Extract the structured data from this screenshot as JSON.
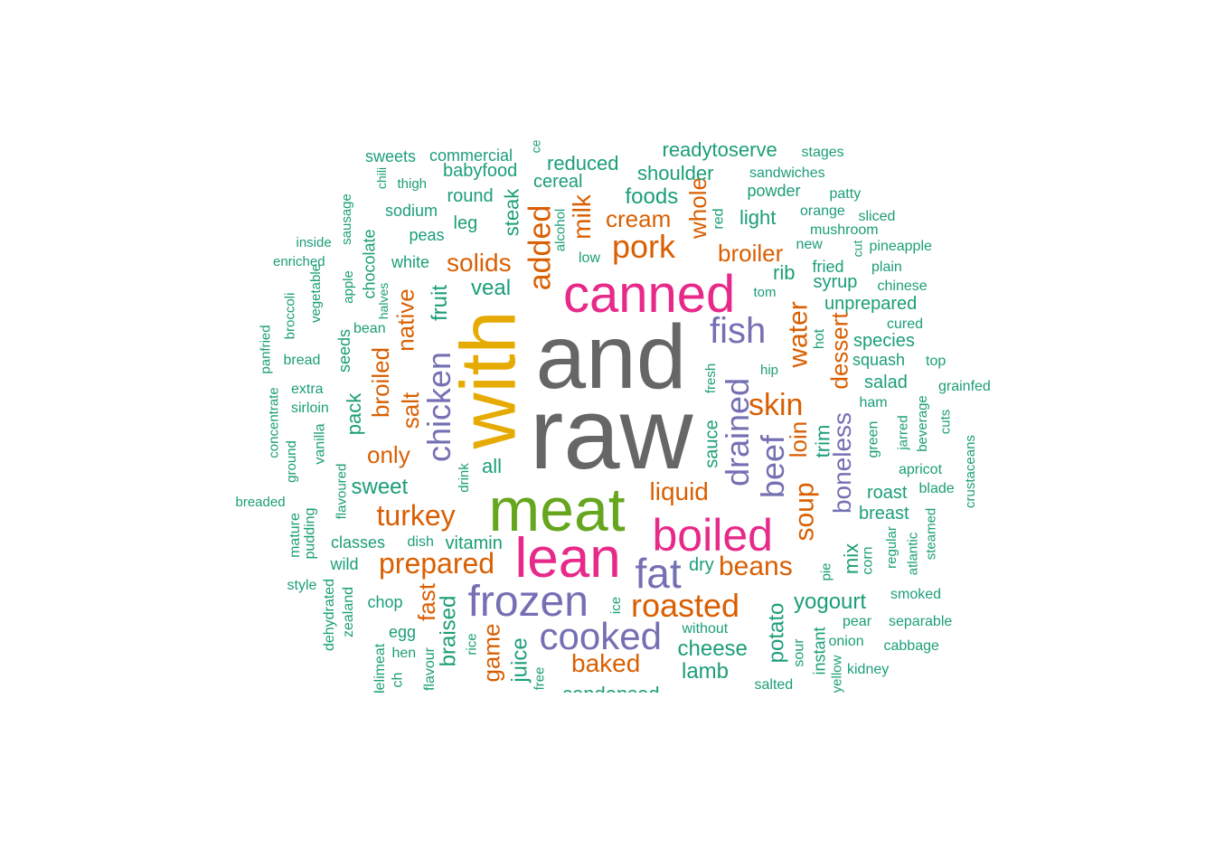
{
  "palette": {
    "teal": "#1b9e77",
    "orange": "#d95f02",
    "purple": "#7570b3",
    "magenta": "#e7298a",
    "green": "#66a61e",
    "gold": "#e6ab02",
    "gray": "#666666"
  },
  "words": [
    {
      "t": "raw",
      "c": "gray"
    },
    {
      "t": "and",
      "c": "gray"
    },
    {
      "t": "with",
      "c": "gold"
    },
    {
      "t": "meat",
      "c": "green"
    },
    {
      "t": "lean",
      "c": "magenta"
    },
    {
      "t": "canned",
      "c": "magenta"
    },
    {
      "t": "boiled",
      "c": "magenta"
    },
    {
      "t": "frozen",
      "c": "purple"
    },
    {
      "t": "fat",
      "c": "purple"
    },
    {
      "t": "cooked",
      "c": "purple"
    },
    {
      "t": "roasted",
      "c": "orange"
    },
    {
      "t": "drained",
      "c": "purple"
    },
    {
      "t": "fish",
      "c": "purple"
    },
    {
      "t": "chicken",
      "c": "purple"
    },
    {
      "t": "pork",
      "c": "orange"
    },
    {
      "t": "beef",
      "c": "purple"
    },
    {
      "t": "added",
      "c": "orange"
    },
    {
      "t": "skin",
      "c": "orange"
    },
    {
      "t": "turkey",
      "c": "orange"
    },
    {
      "t": "prepared",
      "c": "orange"
    },
    {
      "t": "beans",
      "c": "orange"
    },
    {
      "t": "soup",
      "c": "orange"
    },
    {
      "t": "water",
      "c": "orange"
    },
    {
      "t": "boneless",
      "c": "purple"
    },
    {
      "t": "dessert",
      "c": "orange"
    },
    {
      "t": "liquid",
      "c": "orange"
    },
    {
      "t": "baked",
      "c": "orange"
    },
    {
      "t": "milk",
      "c": "orange"
    },
    {
      "t": "broiler",
      "c": "orange"
    },
    {
      "t": "solids",
      "c": "orange"
    },
    {
      "t": "whole",
      "c": "orange"
    },
    {
      "t": "cream",
      "c": "orange"
    },
    {
      "t": "native",
      "c": "orange"
    },
    {
      "t": "salt",
      "c": "orange"
    },
    {
      "t": "broiled",
      "c": "orange"
    },
    {
      "t": "loin",
      "c": "orange"
    },
    {
      "t": "game",
      "c": "orange"
    },
    {
      "t": "fast",
      "c": "orange"
    },
    {
      "t": "only",
      "c": "orange"
    },
    {
      "t": "cheese",
      "c": "teal"
    },
    {
      "t": "potato",
      "c": "teal"
    },
    {
      "t": "fruit",
      "c": "teal"
    },
    {
      "t": "veal",
      "c": "teal"
    },
    {
      "t": "foods",
      "c": "teal"
    },
    {
      "t": "braised",
      "c": "teal"
    },
    {
      "t": "yogourt",
      "c": "teal"
    },
    {
      "t": "lamb",
      "c": "teal"
    },
    {
      "t": "juice",
      "c": "teal"
    },
    {
      "t": "sweet",
      "c": "teal"
    },
    {
      "t": "steak",
      "c": "teal"
    },
    {
      "t": "all",
      "c": "teal"
    },
    {
      "t": "pack",
      "c": "teal"
    },
    {
      "t": "shoulder",
      "c": "teal"
    },
    {
      "t": "readytoserve",
      "c": "teal"
    },
    {
      "t": "reduced",
      "c": "teal"
    },
    {
      "t": "babyfood",
      "c": "teal"
    },
    {
      "t": "light",
      "c": "teal"
    },
    {
      "t": "trim",
      "c": "teal"
    },
    {
      "t": "rib",
      "c": "teal"
    },
    {
      "t": "sauce",
      "c": "teal"
    },
    {
      "t": "mix",
      "c": "teal"
    },
    {
      "t": "salad",
      "c": "teal"
    },
    {
      "t": "roast",
      "c": "teal"
    },
    {
      "t": "breast",
      "c": "teal"
    },
    {
      "t": "dry",
      "c": "teal"
    },
    {
      "t": "vitamin",
      "c": "teal"
    },
    {
      "t": "leg",
      "c": "teal"
    },
    {
      "t": "syrup",
      "c": "teal"
    },
    {
      "t": "unprepared",
      "c": "teal"
    },
    {
      "t": "species",
      "c": "teal"
    },
    {
      "t": "cereal",
      "c": "teal"
    },
    {
      "t": "round",
      "c": "teal"
    },
    {
      "t": "chop",
      "c": "teal"
    },
    {
      "t": "chocolate",
      "c": "teal"
    },
    {
      "t": "white",
      "c": "teal"
    },
    {
      "t": "peas",
      "c": "teal"
    },
    {
      "t": "sodium",
      "c": "teal"
    },
    {
      "t": "seeds",
      "c": "teal"
    },
    {
      "t": "classes",
      "c": "teal"
    },
    {
      "t": "squash",
      "c": "teal"
    },
    {
      "t": "fried",
      "c": "teal"
    },
    {
      "t": "instant",
      "c": "teal"
    },
    {
      "t": "condensed",
      "c": "teal"
    },
    {
      "t": "sweets",
      "c": "teal"
    },
    {
      "t": "commercial",
      "c": "teal"
    },
    {
      "t": "stages",
      "c": "teal"
    },
    {
      "t": "sandwiches",
      "c": "teal"
    },
    {
      "t": "powder",
      "c": "teal"
    },
    {
      "t": "patty",
      "c": "teal"
    },
    {
      "t": "orange",
      "c": "teal"
    },
    {
      "t": "sliced",
      "c": "teal"
    },
    {
      "t": "mushroom",
      "c": "teal"
    },
    {
      "t": "new",
      "c": "teal"
    },
    {
      "t": "pineapple",
      "c": "teal"
    },
    {
      "t": "plain",
      "c": "teal"
    },
    {
      "t": "chinese",
      "c": "teal"
    },
    {
      "t": "cured",
      "c": "teal"
    },
    {
      "t": "top",
      "c": "teal"
    },
    {
      "t": "grainfed",
      "c": "teal"
    },
    {
      "t": "ham",
      "c": "teal"
    },
    {
      "t": "apricot",
      "c": "teal"
    },
    {
      "t": "blade",
      "c": "teal"
    },
    {
      "t": "smoked",
      "c": "teal"
    },
    {
      "t": "separable",
      "c": "teal"
    },
    {
      "t": "cabbage",
      "c": "teal"
    },
    {
      "t": "kidney",
      "c": "teal"
    },
    {
      "t": "onion",
      "c": "teal"
    },
    {
      "t": "pear",
      "c": "teal"
    },
    {
      "t": "salted",
      "c": "teal"
    },
    {
      "t": "without",
      "c": "teal"
    },
    {
      "t": "hen",
      "c": "teal"
    },
    {
      "t": "egg",
      "c": "teal"
    },
    {
      "t": "dish",
      "c": "teal"
    },
    {
      "t": "wild",
      "c": "teal"
    },
    {
      "t": "style",
      "c": "teal"
    },
    {
      "t": "bread",
      "c": "teal"
    },
    {
      "t": "extra",
      "c": "teal"
    },
    {
      "t": "sirloin",
      "c": "teal"
    },
    {
      "t": "bean",
      "c": "teal"
    },
    {
      "t": "inside",
      "c": "teal"
    },
    {
      "t": "enriched",
      "c": "teal"
    },
    {
      "t": "breaded",
      "c": "teal"
    },
    {
      "t": "thigh",
      "c": "teal"
    },
    {
      "t": "low",
      "c": "teal"
    },
    {
      "t": "tom",
      "c": "teal"
    },
    {
      "t": "hip",
      "c": "teal"
    },
    {
      "t": "green",
      "c": "teal"
    },
    {
      "t": "jarred",
      "c": "teal"
    },
    {
      "t": "beverage",
      "c": "teal"
    },
    {
      "t": "cuts",
      "c": "teal"
    },
    {
      "t": "crustaceans",
      "c": "teal"
    },
    {
      "t": "regular",
      "c": "teal"
    },
    {
      "t": "atlantic",
      "c": "teal"
    },
    {
      "t": "steamed",
      "c": "teal"
    },
    {
      "t": "corn",
      "c": "teal"
    },
    {
      "t": "pie",
      "c": "teal"
    },
    {
      "t": "sour",
      "c": "teal"
    },
    {
      "t": "yellow",
      "c": "teal"
    },
    {
      "t": "hot",
      "c": "teal"
    },
    {
      "t": "fresh",
      "c": "teal"
    },
    {
      "t": "red",
      "c": "teal"
    },
    {
      "t": "alcohol",
      "c": "teal"
    },
    {
      "t": "rice",
      "c": "teal"
    },
    {
      "t": "ice",
      "c": "teal"
    },
    {
      "t": "free",
      "c": "teal"
    },
    {
      "t": "flavour",
      "c": "teal"
    },
    {
      "t": "delimeat",
      "c": "teal"
    },
    {
      "t": "ch",
      "c": "teal"
    },
    {
      "t": "zealand",
      "c": "teal"
    },
    {
      "t": "dehydrated",
      "c": "teal"
    },
    {
      "t": "pudding",
      "c": "teal"
    },
    {
      "t": "mature",
      "c": "teal"
    },
    {
      "t": "flavoured",
      "c": "teal"
    },
    {
      "t": "drink",
      "c": "teal"
    },
    {
      "t": "vanilla",
      "c": "teal"
    },
    {
      "t": "ground",
      "c": "teal"
    },
    {
      "t": "concentrate",
      "c": "teal"
    },
    {
      "t": "panfried",
      "c": "teal"
    },
    {
      "t": "broccoli",
      "c": "teal"
    },
    {
      "t": "vegetable",
      "c": "teal"
    },
    {
      "t": "apple",
      "c": "teal"
    },
    {
      "t": "sausage",
      "c": "teal"
    },
    {
      "t": "halves",
      "c": "teal"
    },
    {
      "t": "chili",
      "c": "teal"
    },
    {
      "t": "cut",
      "c": "teal"
    },
    {
      "t": "ce",
      "c": "teal"
    }
  ]
}
